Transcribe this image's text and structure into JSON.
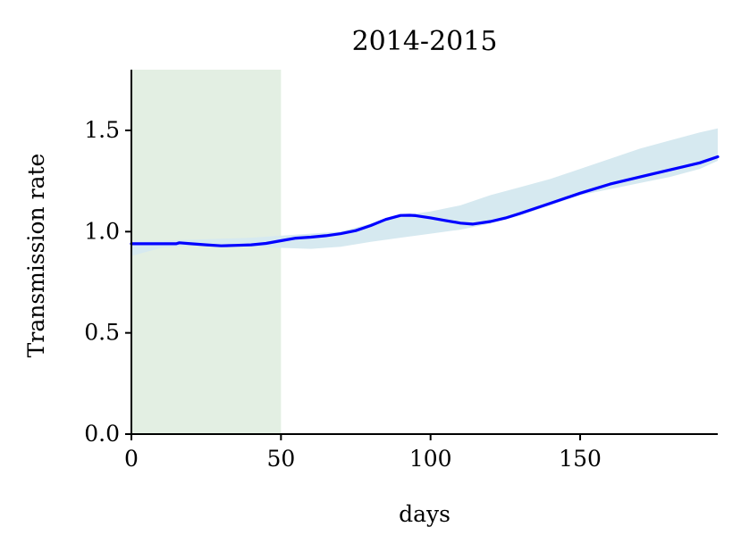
{
  "chart_data": {
    "type": "line",
    "title": "2014-2015",
    "xlabel": "days",
    "ylabel": "Transmission rate",
    "xlim": [
      0,
      196
    ],
    "ylim": [
      0,
      1.8
    ],
    "x_ticks": [
      0,
      50,
      100,
      150
    ],
    "y_ticks": [
      0.0,
      0.5,
      1.0,
      1.5
    ],
    "x_tick_labels": [
      "0",
      "50",
      "100",
      "150"
    ],
    "y_tick_labels": [
      "0.0",
      "0.5",
      "1.0",
      "1.5"
    ],
    "grid": false,
    "shaded_region": {
      "x_start": 0,
      "x_end": 50,
      "color": "#e3efe3"
    },
    "series": [
      {
        "color": "#0000ff",
        "x": [
          0,
          5,
          10,
          15,
          16,
          20,
          25,
          30,
          35,
          40,
          45,
          50,
          55,
          60,
          65,
          70,
          75,
          80,
          85,
          90,
          93,
          95,
          100,
          105,
          110,
          114,
          120,
          125,
          130,
          140,
          150,
          160,
          170,
          180,
          190,
          196
        ],
        "y": [
          0.94,
          0.94,
          0.94,
          0.94,
          0.945,
          0.94,
          0.935,
          0.93,
          0.932,
          0.935,
          0.942,
          0.955,
          0.968,
          0.973,
          0.98,
          0.99,
          1.005,
          1.03,
          1.06,
          1.08,
          1.081,
          1.079,
          1.068,
          1.055,
          1.042,
          1.037,
          1.05,
          1.067,
          1.09,
          1.14,
          1.19,
          1.235,
          1.27,
          1.305,
          1.34,
          1.37
        ]
      }
    ],
    "band": {
      "color": "#d6e9f0",
      "x": [
        0,
        10,
        20,
        30,
        40,
        50,
        60,
        70,
        80,
        90,
        100,
        110,
        120,
        130,
        140,
        150,
        160,
        170,
        180,
        190,
        196
      ],
      "lower": [
        0.88,
        0.92,
        0.93,
        0.925,
        0.925,
        0.92,
        0.915,
        0.925,
        0.95,
        0.97,
        0.99,
        1.01,
        1.04,
        1.08,
        1.13,
        1.18,
        1.21,
        1.24,
        1.27,
        1.31,
        1.35
      ],
      "upper": [
        0.95,
        0.955,
        0.96,
        0.965,
        0.97,
        0.98,
        0.99,
        1.0,
        1.04,
        1.08,
        1.1,
        1.13,
        1.18,
        1.22,
        1.26,
        1.31,
        1.36,
        1.41,
        1.45,
        1.49,
        1.51
      ]
    }
  }
}
